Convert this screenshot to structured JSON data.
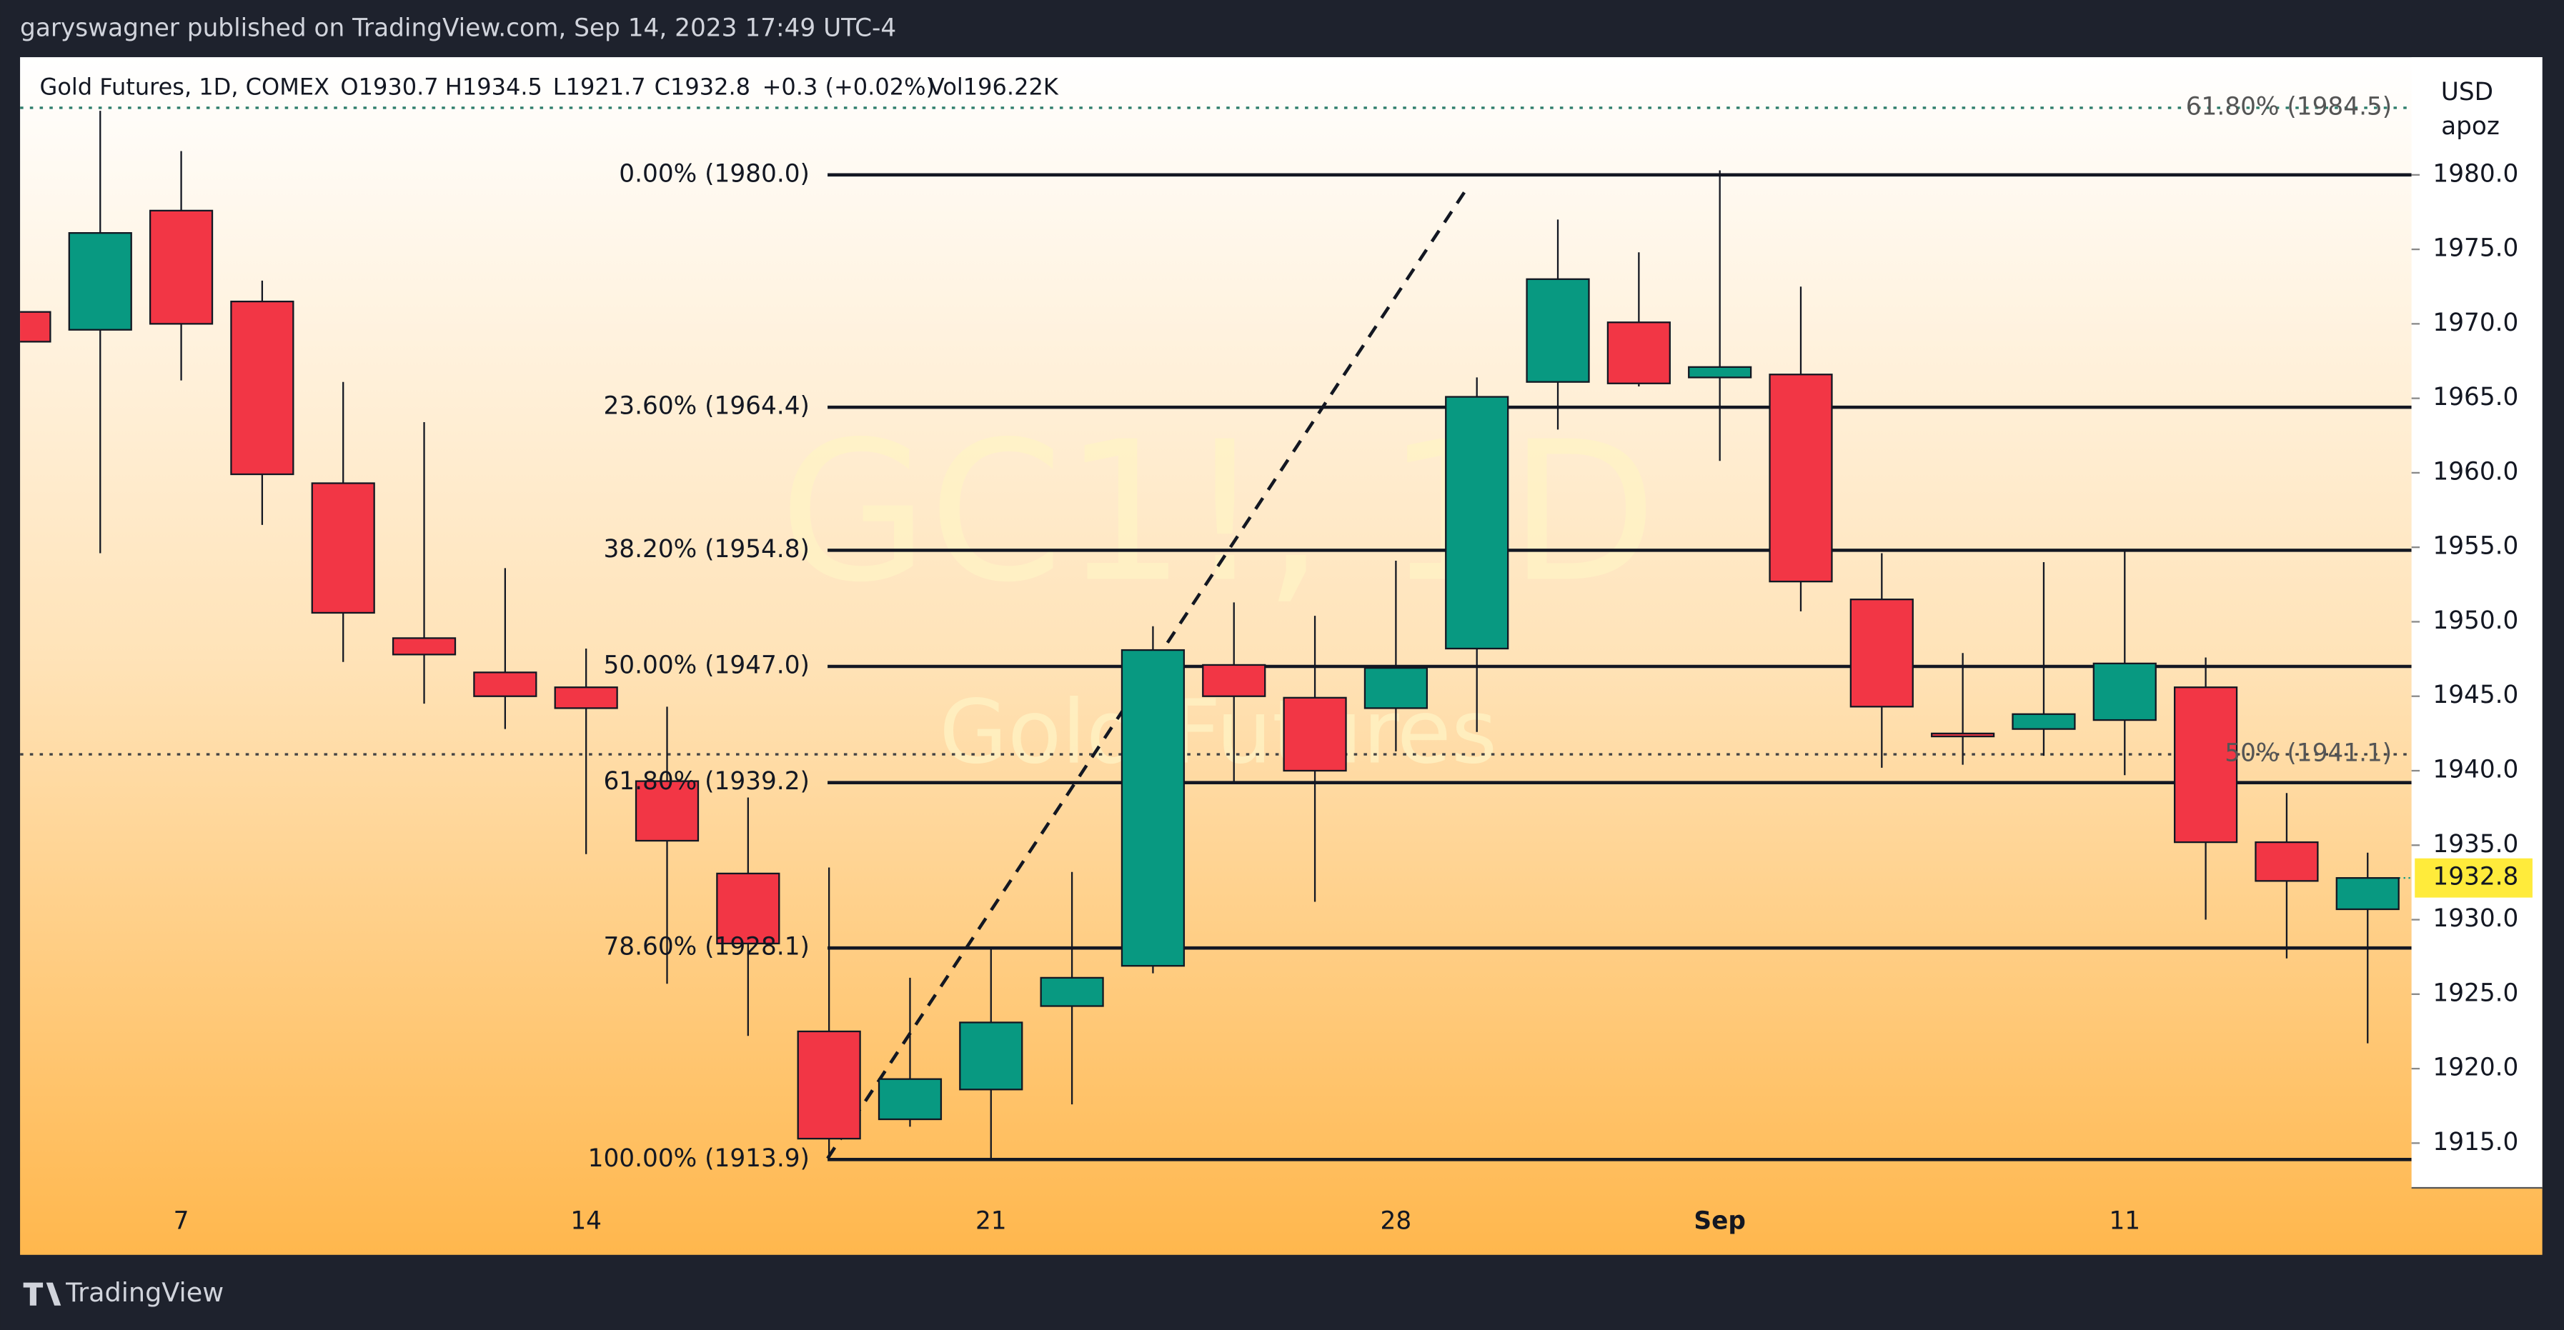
{
  "publisher": "garyswagner published on TradingView.com, Sep 14, 2023 17:49 UTC-4",
  "brand": "TradingView",
  "chart_data": {
    "type": "candlestick",
    "symbol": "Gold Futures, 1D, COMEX",
    "ohlc_text": [
      "O1930.7",
      "H1934.5",
      "L1921.7",
      "C1932.8",
      "+0.3 (+0.02%)",
      "Vol196.22K"
    ],
    "watermark": "GC1!, 1D",
    "watermark_sub": "Gold Futures",
    "currency": "USD",
    "unit": "apoz",
    "categories": [
      null,
      null,
      "7",
      null,
      null,
      null,
      null,
      "14",
      null,
      null,
      null,
      null,
      "21",
      null,
      null,
      null,
      null,
      "28",
      null,
      null,
      null,
      "Sep",
      null,
      null,
      null,
      null,
      "11",
      null,
      null,
      null
    ],
    "open": [
      1970.8,
      1969.6,
      1977.6,
      1971.5,
      1959.3,
      1948.9,
      1946.6,
      1945.6,
      1939.3,
      1933.1,
      1922.5,
      1916.6,
      1918.6,
      1924.2,
      1926.9,
      1947.1,
      1944.9,
      1944.2,
      1948.2,
      1966.1,
      1970.1,
      1966.4,
      1966.6,
      1951.5,
      1942.5,
      1942.8,
      1943.4,
      1945.6,
      1935.2,
      1930.7
    ],
    "high": [
      1970.8,
      1984.3,
      1981.6,
      1972.9,
      1966.1,
      1963.4,
      1953.6,
      1948.2,
      1944.3,
      1938.2,
      1933.5,
      1926.1,
      1928.0,
      1933.2,
      1949.7,
      1951.3,
      1950.4,
      1954.1,
      1966.4,
      1977.0,
      1974.8,
      1980.3,
      1972.5,
      1954.6,
      1947.9,
      1954.0,
      1954.7,
      1947.6,
      1938.5,
      1934.5
    ],
    "low": [
      1968.8,
      1954.6,
      1966.2,
      1956.5,
      1947.3,
      1944.5,
      1942.8,
      1934.4,
      1925.7,
      1922.2,
      1913.9,
      1916.1,
      1913.9,
      1917.6,
      1926.4,
      1939.3,
      1931.2,
      1941.3,
      1942.6,
      1962.9,
      1965.8,
      1960.8,
      1950.7,
      1940.2,
      1940.4,
      1941.0,
      1939.7,
      1930.0,
      1927.4,
      1921.7
    ],
    "close": [
      1968.8,
      1976.1,
      1970.0,
      1959.9,
      1950.6,
      1947.8,
      1945.0,
      1944.2,
      1935.3,
      1928.4,
      1915.3,
      1919.3,
      1923.1,
      1926.1,
      1948.1,
      1945.0,
      1940.0,
      1946.9,
      1965.1,
      1973.0,
      1966.0,
      1967.1,
      1952.7,
      1944.3,
      1942.3,
      1943.8,
      1947.2,
      1935.2,
      1932.6,
      1932.8
    ],
    "up_color": "#089981",
    "down_color": "#f23645",
    "ylim": [
      1907.5,
      1987.9
    ],
    "yticks": [
      {
        "value": 1915,
        "label": "1915.0"
      },
      {
        "value": 1920,
        "label": "1920.0"
      },
      {
        "value": 1925,
        "label": "1925.0"
      },
      {
        "value": 1930,
        "label": "1930.0"
      },
      {
        "value": 1935,
        "label": "1935.0"
      },
      {
        "value": 1940,
        "label": "1940.0"
      },
      {
        "value": 1945,
        "label": "1945.0"
      },
      {
        "value": 1950,
        "label": "1950.0"
      },
      {
        "value": 1955,
        "label": "1955.0"
      },
      {
        "value": 1960,
        "label": "1960.0"
      },
      {
        "value": 1965,
        "label": "1965.0"
      },
      {
        "value": 1970,
        "label": "1970.0"
      },
      {
        "value": 1975,
        "label": "1975.0"
      },
      {
        "value": 1980,
        "label": "1980.0"
      }
    ],
    "fib_levels": [
      {
        "value": 1980.0,
        "label": "0.00% (1980.0)"
      },
      {
        "value": 1964.4,
        "label": "23.60% (1964.4)"
      },
      {
        "value": 1954.8,
        "label": "38.20% (1954.8)"
      },
      {
        "value": 1947.0,
        "label": "50.00% (1947.0)"
      },
      {
        "value": 1939.2,
        "label": "61.80% (1939.2)"
      },
      {
        "value": 1928.1,
        "label": "78.60% (1928.1)"
      },
      {
        "value": 1913.9,
        "label": "100.00% (1913.9)"
      }
    ],
    "extended_levels": [
      {
        "value": 1984.5,
        "label": "61.80% (1984.5)"
      },
      {
        "value": 1941.1,
        "label": "50% (1941.1)"
      }
    ]
  }
}
